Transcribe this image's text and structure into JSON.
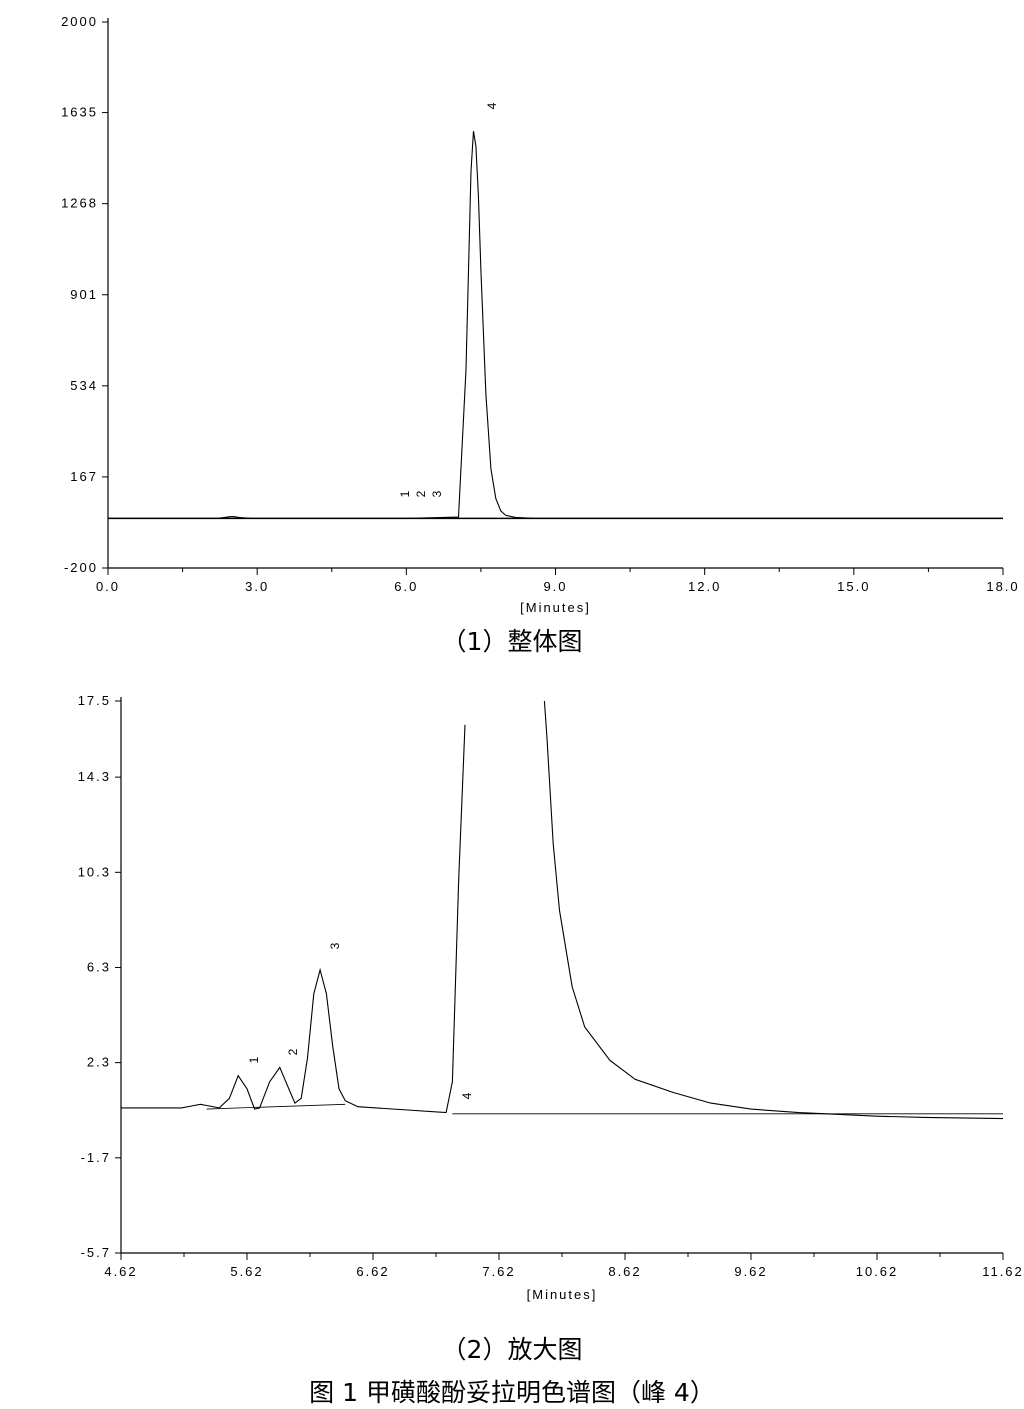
{
  "charts": [
    {
      "id": "overall",
      "caption": "（1）整体图",
      "xlabel": "[Minutes]",
      "xlim": [
        0,
        18
      ],
      "ylim": [
        -200,
        2000
      ],
      "xticks": [
        "0.0",
        "3.0",
        "6.0",
        "9.0",
        "12.0",
        "15.0",
        "18.0"
      ],
      "yticks": [
        "-200",
        "167",
        "534",
        "901",
        "1268",
        "1635",
        "2000"
      ],
      "peak_labels": [
        "1",
        "2",
        "3",
        "4"
      ]
    },
    {
      "id": "zoom",
      "caption": "（2）放大图",
      "xlabel": "[Minutes]",
      "xlim": [
        4.62,
        11.62
      ],
      "ylim": [
        -5.7,
        17.5
      ],
      "xticks": [
        "4.62",
        "5.62",
        "6.62",
        "7.62",
        "8.62",
        "9.62",
        "10.62",
        "11.62"
      ],
      "yticks": [
        "-5.7",
        "-1.7",
        "2.3",
        "6.3",
        "10.3",
        "14.3",
        "17.5"
      ],
      "peak_labels": [
        "1",
        "2",
        "3",
        "4"
      ]
    }
  ],
  "figure_caption": "图 1  甲磺酸酚妥拉明色谱图（峰 4）",
  "chart_data": [
    {
      "type": "line",
      "title": "（1）整体图",
      "xlabel": "[Minutes]",
      "ylabel": "",
      "xlim": [
        0,
        18
      ],
      "ylim": [
        -200,
        2000
      ],
      "baseline": 0,
      "series": [
        {
          "x": [
            0,
            2.2,
            2.4,
            2.5,
            2.65,
            2.9,
            6.0,
            7.05,
            7.2,
            7.3,
            7.35,
            7.4,
            7.45,
            7.5,
            7.6,
            7.7,
            7.8,
            7.9,
            8.0,
            8.2,
            8.6,
            18.0
          ],
          "y": [
            0,
            0,
            5,
            8,
            3,
            0,
            0,
            5,
            600,
            1400,
            1560,
            1500,
            1300,
            1000,
            500,
            200,
            80,
            30,
            12,
            4,
            0,
            0
          ]
        }
      ],
      "peaks": [
        {
          "label": "1",
          "x": 6.0
        },
        {
          "label": "2",
          "x": 6.35
        },
        {
          "label": "3",
          "x": 6.7
        },
        {
          "label": "4",
          "x": 7.35,
          "y": 1560
        }
      ]
    },
    {
      "type": "line",
      "title": "（2）放大图",
      "xlabel": "[Minutes]",
      "ylabel": "",
      "xlim": [
        4.62,
        11.62
      ],
      "ylim": [
        -5.7,
        17.5
      ],
      "series": [
        {
          "x": [
            4.62,
            5.1,
            5.2,
            5.25,
            5.3,
            5.4,
            5.48,
            5.55,
            5.62,
            5.68,
            5.72,
            5.8,
            5.88,
            5.92,
            6.0,
            6.05,
            6.1,
            6.15,
            6.2,
            6.25,
            6.3,
            6.35,
            6.4,
            6.5,
            7.2,
            7.25,
            7.3,
            7.35
          ],
          "y": [
            0.4,
            0.4,
            0.5,
            0.55,
            0.5,
            0.4,
            0.8,
            1.75,
            1.2,
            0.35,
            0.4,
            1.5,
            2.1,
            1.6,
            0.6,
            0.8,
            2.5,
            5.2,
            6.2,
            5.2,
            3.0,
            1.2,
            0.7,
            0.45,
            0.2,
            1.5,
            10.0,
            16.5
          ]
        },
        {
          "x": [
            7.98,
            8.0,
            8.05,
            8.1,
            8.2,
            8.3,
            8.5,
            8.7,
            9.0,
            9.3,
            9.62,
            10.0,
            10.62,
            11.0,
            11.62
          ],
          "y": [
            17.5,
            16.0,
            11.5,
            8.7,
            5.5,
            3.8,
            2.4,
            1.6,
            1.05,
            0.6,
            0.35,
            0.2,
            0.05,
            0.0,
            -0.05
          ]
        }
      ],
      "peaks": [
        {
          "label": "1",
          "x": 5.55,
          "y": 1.75
        },
        {
          "label": "2",
          "x": 5.88,
          "y": 2.1
        },
        {
          "label": "3",
          "x": 6.2,
          "y": 6.2
        },
        {
          "label": "4",
          "x": 7.6
        }
      ]
    }
  ]
}
